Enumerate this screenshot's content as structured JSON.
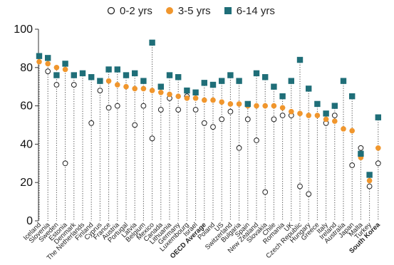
{
  "chart_data": {
    "type": "scatter",
    "ylim": [
      0,
      100
    ],
    "yticks": [
      0,
      20,
      40,
      60,
      80,
      100
    ],
    "legend_position": "top",
    "grid": false,
    "categories": [
      "Iceland",
      "Slovenia",
      "Sweden",
      "Estonia",
      "Denmark",
      "The Netherlands",
      "Finland",
      "Cyprus",
      "France",
      "Austria",
      "Portugal",
      "Latvia",
      "Belgium",
      "Mexico",
      "Canada",
      "Lithuania",
      "Germany",
      "Luxembourg",
      "Israel",
      "OECD Average",
      "Poland",
      "US",
      "Switzerland",
      "Bulgaria",
      "Spain",
      "New Zealand",
      "Slovakia",
      "Chile",
      "Romania",
      "UK",
      "Czech Republic",
      "Hungary",
      "Greece",
      "Italy",
      "Ireland",
      "Australia",
      "Japan",
      "Malta",
      "Turkey",
      "South Korea"
    ],
    "bold_categories": [
      "OECD Average",
      "South Korea"
    ],
    "series": [
      {
        "name": "0-2 yrs",
        "marker": "open-circle",
        "color": "#222222",
        "values": [
          null,
          78,
          71,
          30,
          71,
          null,
          51,
          68,
          59,
          60,
          null,
          50,
          60,
          43,
          58,
          64,
          58,
          65,
          58,
          51,
          49,
          53,
          57,
          38,
          53,
          42,
          15,
          53,
          55,
          55,
          18,
          14,
          null,
          51,
          55,
          null,
          29,
          38,
          18,
          30
        ]
      },
      {
        "name": "3-5 yrs",
        "marker": "circle",
        "color": "#F0962D",
        "values": [
          83,
          82,
          80,
          79,
          null,
          null,
          null,
          null,
          73,
          71,
          70,
          69,
          69,
          68,
          67,
          66,
          65,
          64,
          64,
          63,
          63,
          62,
          61,
          61,
          60,
          60,
          60,
          60,
          59,
          57,
          56,
          55,
          55,
          53,
          52,
          48,
          47,
          33,
          21,
          38
        ]
      },
      {
        "name": "6-14 yrs",
        "marker": "square",
        "color": "#1F6E78",
        "values": [
          86,
          85,
          76,
          82,
          76,
          77,
          75,
          73,
          79,
          79,
          76,
          77,
          73,
          93,
          70,
          76,
          75,
          68,
          67,
          72,
          71,
          73,
          76,
          73,
          61,
          77,
          75,
          70,
          65,
          73,
          84,
          69,
          61,
          56,
          60,
          73,
          65,
          35,
          24,
          54
        ]
      }
    ]
  }
}
